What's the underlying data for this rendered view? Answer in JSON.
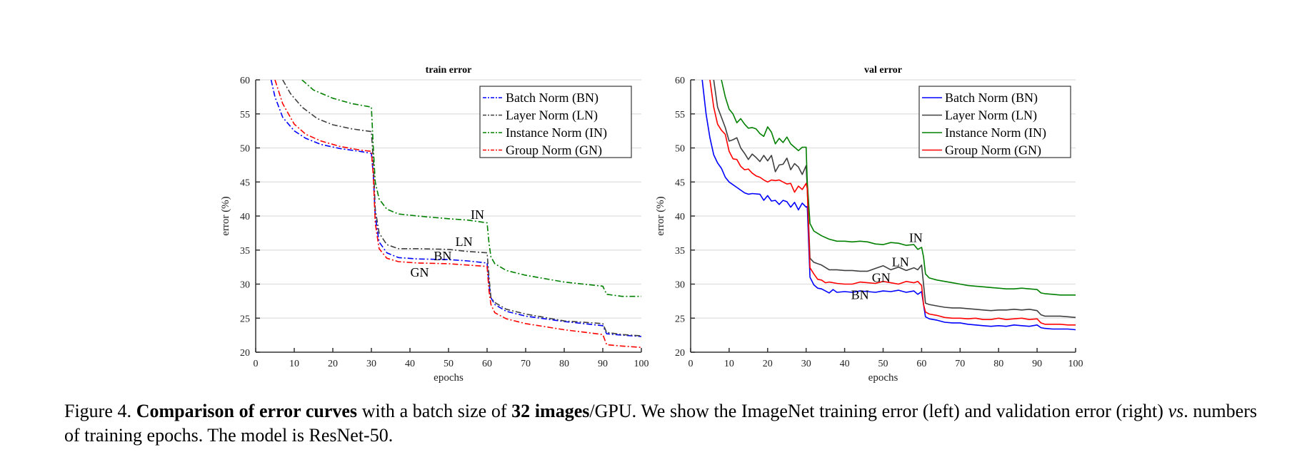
{
  "figure": {
    "caption": {
      "label": "Figure 4.",
      "bold_title": "Comparison of error curves",
      "text_1": " with a batch size of ",
      "bold_batch": "32 images",
      "text_2": "/GPU. We show the ImageNet training error (left) and validation error (right) ",
      "italic_vs": "vs",
      "text_3": ". numbers of training epochs. The model is ResNet-50."
    }
  },
  "chart_data": [
    {
      "type": "line",
      "title": "train error",
      "xlabel": "epochs",
      "ylabel": "error (%)",
      "xlim": [
        0,
        100
      ],
      "ylim": [
        20,
        60
      ],
      "xticks": [
        0,
        10,
        20,
        30,
        40,
        50,
        60,
        70,
        80,
        90,
        100
      ],
      "yticks": [
        20,
        25,
        30,
        35,
        40,
        45,
        50,
        55,
        60
      ],
      "grid": "horizontal",
      "legend": "top-right",
      "line_style": "dash-dot",
      "series": [
        {
          "name": "Batch Norm (BN)",
          "short": "BN",
          "color": "#0000ff",
          "x": [
            4,
            5,
            7,
            10,
            13,
            17,
            22,
            27,
            30,
            30.5,
            31,
            32,
            34,
            37,
            42,
            50,
            55,
            60,
            60.5,
            61,
            62,
            65,
            70,
            80,
            90,
            91,
            95,
            100
          ],
          "y": [
            60,
            57.5,
            54.5,
            52.5,
            51.4,
            50.5,
            49.9,
            49.5,
            49.2,
            46,
            40,
            36.2,
            34.6,
            33.9,
            33.7,
            33.6,
            33.4,
            33.1,
            30,
            28,
            27,
            26,
            25.3,
            24.5,
            23.9,
            22.7,
            22.5,
            22.3
          ]
        },
        {
          "name": "Layer Norm (LN)",
          "short": "LN",
          "color": "#404040",
          "x": [
            7,
            9,
            12,
            16,
            20,
            25,
            30,
            30.5,
            31,
            32,
            34,
            37,
            42,
            50,
            55,
            60,
            60.5,
            61,
            62,
            65,
            70,
            80,
            90,
            91,
            95,
            100
          ],
          "y": [
            60,
            58,
            56,
            54.3,
            53.4,
            52.8,
            52.4,
            48,
            41,
            37.5,
            35.8,
            35.2,
            35.2,
            35.1,
            34.8,
            34.6,
            31,
            28,
            27.3,
            26.3,
            25.6,
            24.6,
            24.2,
            22.9,
            22.6,
            22.4
          ]
        },
        {
          "name": "Instance Norm (IN)",
          "short": "IN",
          "color": "#008000",
          "x": [
            12,
            15,
            20,
            25,
            30,
            30.5,
            31,
            32,
            34,
            37,
            42,
            50,
            55,
            60,
            60.5,
            61,
            62,
            65,
            70,
            80,
            90,
            91,
            95,
            100
          ],
          "y": [
            60,
            58.5,
            57.3,
            56.5,
            56,
            50,
            45,
            42.5,
            41,
            40.3,
            40,
            39.6,
            39.4,
            39,
            36,
            34,
            33,
            32,
            31.3,
            30.3,
            29.7,
            28.5,
            28.2,
            28.2
          ]
        },
        {
          "name": "Group Norm (GN)",
          "short": "GN",
          "color": "#ff0000",
          "x": [
            5,
            7,
            10,
            13,
            17,
            22,
            27,
            30,
            30.5,
            31,
            32,
            34,
            37,
            42,
            50,
            55,
            60,
            60.5,
            61,
            62,
            65,
            70,
            80,
            90,
            91,
            95,
            100
          ],
          "y": [
            60,
            56.5,
            53.5,
            52,
            51,
            50.2,
            49.7,
            49.5,
            46,
            39,
            35.2,
            33.8,
            33.3,
            33.1,
            33,
            32.8,
            32.6,
            29,
            27,
            25.8,
            24.9,
            24.2,
            23.3,
            22.6,
            21.1,
            20.9,
            20.7
          ]
        }
      ],
      "annotations": [
        {
          "text": "IN",
          "x": 57.5,
          "y": 39.6
        },
        {
          "text": "LN",
          "x": 54,
          "y": 35.6
        },
        {
          "text": "BN",
          "x": 48.5,
          "y": 33.5
        },
        {
          "text": "GN",
          "x": 42.5,
          "y": 31.1
        }
      ]
    },
    {
      "type": "line",
      "title": "val error",
      "xlabel": "epochs",
      "ylabel": "error (%)",
      "xlim": [
        0,
        100
      ],
      "ylim": [
        20,
        60
      ],
      "xticks": [
        0,
        10,
        20,
        30,
        40,
        50,
        60,
        70,
        80,
        90,
        100
      ],
      "yticks": [
        20,
        25,
        30,
        35,
        40,
        45,
        50,
        55,
        60
      ],
      "grid": "horizontal",
      "legend": "top-right",
      "line_style": "solid",
      "series": [
        {
          "name": "Batch Norm (BN)",
          "short": "BN",
          "color": "#0000ff",
          "x": [
            3,
            4,
            5,
            6,
            7,
            8,
            9,
            10,
            12,
            14,
            15,
            16,
            18,
            19,
            20,
            21,
            22,
            23,
            24,
            25,
            26,
            27,
            28,
            29,
            30,
            30.3,
            31,
            32,
            33,
            34,
            35,
            36,
            37,
            38,
            40,
            42,
            44,
            46,
            48,
            50,
            52,
            54,
            56,
            58,
            59,
            60,
            60.5,
            61,
            62,
            64,
            66,
            68,
            70,
            72,
            74,
            76,
            78,
            80,
            82,
            84,
            86,
            88,
            90,
            91,
            92,
            94,
            96,
            98,
            100
          ],
          "y": [
            60,
            55,
            51.5,
            49,
            47.8,
            47,
            45.7,
            45,
            44.2,
            43.4,
            43.2,
            43.3,
            43.2,
            42.3,
            43,
            42.2,
            42.3,
            41.7,
            42.3,
            42.1,
            41.3,
            42,
            40.9,
            41.9,
            41.3,
            41.4,
            31,
            29.9,
            29.4,
            29.3,
            29,
            28.7,
            29.2,
            28.8,
            28.9,
            28.8,
            29,
            28.9,
            28.8,
            29,
            28.9,
            29.1,
            28.8,
            29,
            28.5,
            28.9,
            27,
            25.2,
            24.9,
            24.7,
            24.4,
            24.3,
            24.3,
            24.1,
            24,
            23.9,
            23.8,
            23.9,
            23.8,
            24,
            23.9,
            23.8,
            24,
            23.6,
            23.5,
            23.4,
            23.4,
            23.4,
            23.3
          ]
        },
        {
          "name": "Layer Norm (LN)",
          "short": "LN",
          "color": "#404040",
          "x": [
            6,
            7,
            8,
            9,
            10,
            11,
            12,
            13,
            14,
            15,
            16,
            17,
            18,
            19,
            20,
            21,
            22,
            23,
            24,
            25,
            26,
            27,
            28,
            29,
            30,
            30.3,
            31,
            32,
            34,
            36,
            38,
            40,
            42,
            44,
            46,
            48,
            50,
            52,
            54,
            56,
            58,
            59,
            60,
            60.5,
            61,
            62,
            64,
            66,
            68,
            70,
            72,
            74,
            76,
            78,
            80,
            82,
            84,
            86,
            88,
            90,
            91,
            92,
            94,
            96,
            98,
            100
          ],
          "y": [
            60,
            56,
            54.5,
            53,
            51,
            51.2,
            51.5,
            50,
            49.2,
            48.3,
            49.1,
            48.6,
            48,
            48.9,
            48.1,
            48.9,
            46.5,
            47.5,
            47.6,
            48.5,
            46.8,
            47.7,
            47.2,
            46.1,
            47.4,
            44,
            33.8,
            33.2,
            32.8,
            32.1,
            32.1,
            32,
            32,
            31.9,
            31.9,
            32.3,
            32.7,
            32.1,
            32.5,
            32,
            32.4,
            32.1,
            32.8,
            30,
            27.2,
            27,
            26.8,
            26.6,
            26.5,
            26.5,
            26.4,
            26.3,
            26.2,
            26.1,
            26.2,
            26.2,
            26.3,
            26.2,
            26.3,
            26.1,
            25.5,
            25.3,
            25.3,
            25.3,
            25.2,
            25.1
          ]
        },
        {
          "name": "Instance Norm (IN)",
          "short": "IN",
          "color": "#008000",
          "x": [
            8,
            9,
            10,
            11,
            12,
            13,
            14,
            15,
            16,
            17,
            18,
            19,
            20,
            21,
            22,
            23,
            24,
            25,
            26,
            27,
            28,
            29,
            30,
            30.3,
            31,
            32,
            34,
            36,
            38,
            40,
            42,
            44,
            46,
            48,
            50,
            52,
            54,
            56,
            58,
            59,
            60,
            60.5,
            61,
            62,
            64,
            66,
            68,
            70,
            72,
            74,
            76,
            78,
            80,
            82,
            84,
            86,
            88,
            90,
            91,
            92,
            94,
            96,
            98,
            100
          ],
          "y": [
            60,
            57.5,
            55.7,
            55,
            53.7,
            54.3,
            53.5,
            52.9,
            53,
            52.8,
            52.1,
            51.7,
            53.1,
            52.3,
            50.6,
            51.4,
            50.8,
            51.6,
            50.6,
            50.1,
            49.6,
            50.1,
            50.1,
            45,
            38.9,
            37.8,
            37.1,
            36.6,
            36.3,
            36.3,
            36.2,
            36.3,
            36.2,
            35.9,
            35.8,
            36.1,
            36,
            35.7,
            35.8,
            35.1,
            35.4,
            34,
            31.5,
            30.9,
            30.6,
            30.4,
            30.2,
            30,
            29.8,
            29.7,
            29.6,
            29.5,
            29.4,
            29.3,
            29.3,
            29.4,
            29.3,
            29.2,
            28.7,
            28.6,
            28.5,
            28.4,
            28.4,
            28.4
          ]
        },
        {
          "name": "Group Norm (GN)",
          "short": "GN",
          "color": "#ff0000",
          "x": [
            5,
            6,
            7,
            8,
            9,
            10,
            11,
            12,
            13,
            14,
            15,
            16,
            17,
            18,
            19,
            20,
            21,
            22,
            23,
            24,
            25,
            26,
            27,
            28,
            29,
            30,
            30.3,
            31,
            32,
            33,
            34,
            35,
            36,
            38,
            40,
            42,
            44,
            46,
            48,
            50,
            52,
            54,
            56,
            58,
            59,
            60,
            60.5,
            61,
            62,
            64,
            66,
            68,
            70,
            72,
            74,
            76,
            78,
            80,
            82,
            84,
            86,
            88,
            90,
            91,
            92,
            94,
            96,
            98,
            100
          ],
          "y": [
            60,
            56,
            53.5,
            52.6,
            52,
            49.5,
            48.4,
            48.3,
            47.3,
            46.8,
            46.9,
            46.3,
            45.9,
            45.7,
            45.3,
            45,
            45.3,
            45.2,
            45.3,
            45,
            44.7,
            44.8,
            43.5,
            44.4,
            43.9,
            44.8,
            44,
            32.4,
            31.5,
            30.7,
            30.6,
            30.2,
            30.3,
            30.1,
            30,
            30,
            30.3,
            30.2,
            30.1,
            30.4,
            30.2,
            30,
            30.4,
            30.2,
            30.4,
            29.8,
            27,
            25.9,
            25.6,
            25.4,
            25.1,
            25,
            25,
            24.9,
            25,
            24.8,
            24.8,
            25,
            24.8,
            24.9,
            25,
            24.8,
            24.9,
            24.3,
            24.1,
            24.1,
            24.1,
            24,
            24
          ]
        }
      ],
      "annotations": [
        {
          "text": "IN",
          "x": 58.5,
          "y": 36.2
        },
        {
          "text": "LN",
          "x": 54.5,
          "y": 32.6
        },
        {
          "text": "GN",
          "x": 49.5,
          "y": 30.3
        },
        {
          "text": "BN",
          "x": 44,
          "y": 27.8
        }
      ]
    }
  ]
}
